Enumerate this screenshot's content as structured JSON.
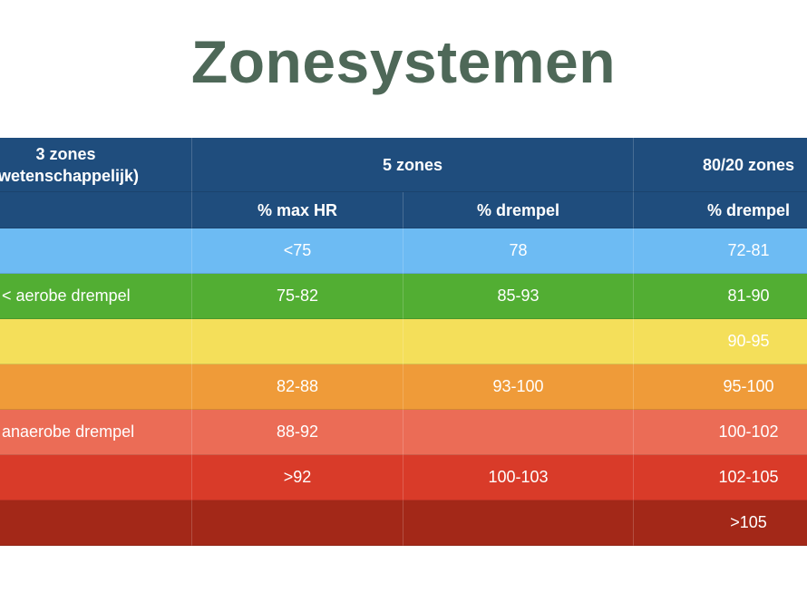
{
  "title": "Zonesystemen",
  "table": {
    "groups": [
      {
        "lines": [
          "3 zones",
          "(wetenschappelijk)"
        ]
      },
      {
        "lines": [
          "5 zones"
        ]
      },
      {
        "lines": [
          "80/20 zones"
        ]
      }
    ],
    "subheaders": [
      null,
      "% max HR",
      "% drempel",
      "% drempel"
    ],
    "header_color": "#1f4d7d",
    "rows": [
      [
        null,
        "<75",
        "78",
        "72-81"
      ],
      [
        "< aerobe drempel",
        "75-82",
        "85-93",
        "81-90"
      ],
      [
        null,
        null,
        null,
        "90-95"
      ],
      [
        null,
        "82-88",
        "93-100",
        "95-100"
      ],
      [
        "anaerobe drempel",
        "88-92",
        null,
        "100-102"
      ],
      [
        null,
        ">92",
        "100-103",
        "102-105"
      ],
      [
        null,
        null,
        null,
        ">105"
      ]
    ],
    "row_colors": [
      "#6dbbf3",
      "#52ae33",
      "#f4df5a",
      "#ef9b39",
      "#eb6c56",
      "#d93b29",
      "#a32818"
    ]
  }
}
